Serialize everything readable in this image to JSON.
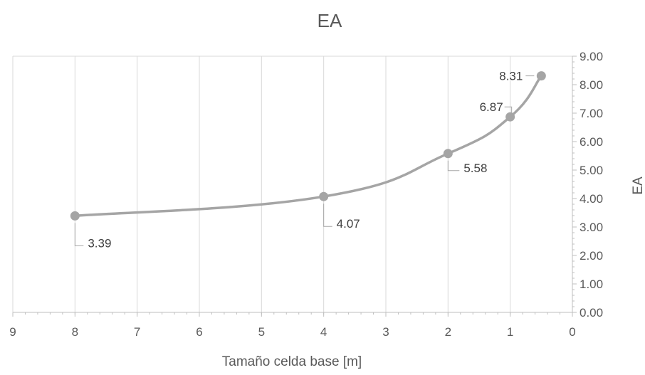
{
  "chart_data": {
    "type": "line",
    "title": "EA",
    "xlabel": "Tamaño celda base [m]",
    "ylabel": "EA",
    "x_axis_reversed": true,
    "y_axis_position": "right",
    "xlim": [
      0,
      9
    ],
    "ylim": [
      0,
      9
    ],
    "x_ticks": [
      "9",
      "8",
      "7",
      "6",
      "5",
      "4",
      "3",
      "2",
      "1",
      "0"
    ],
    "y_ticks": [
      "0.00",
      "1.00",
      "2.00",
      "3.00",
      "4.00",
      "5.00",
      "6.00",
      "7.00",
      "8.00",
      "9.00"
    ],
    "grid": {
      "vertical": true,
      "horizontal": false
    },
    "legend": "none",
    "series": [
      {
        "x": [
          8,
          4,
          2,
          1,
          0.5
        ],
        "y": [
          3.39,
          4.07,
          5.58,
          6.87,
          8.31
        ],
        "labels": [
          "3.39",
          "4.07",
          "5.58",
          "6.87",
          "8.31"
        ],
        "smooth": true
      }
    ],
    "colors": {
      "series": "#A5A5A5",
      "grid": "#D9D9D9",
      "axis": "#BFBFBF",
      "text": "#595959",
      "label_text": "#404040"
    }
  }
}
